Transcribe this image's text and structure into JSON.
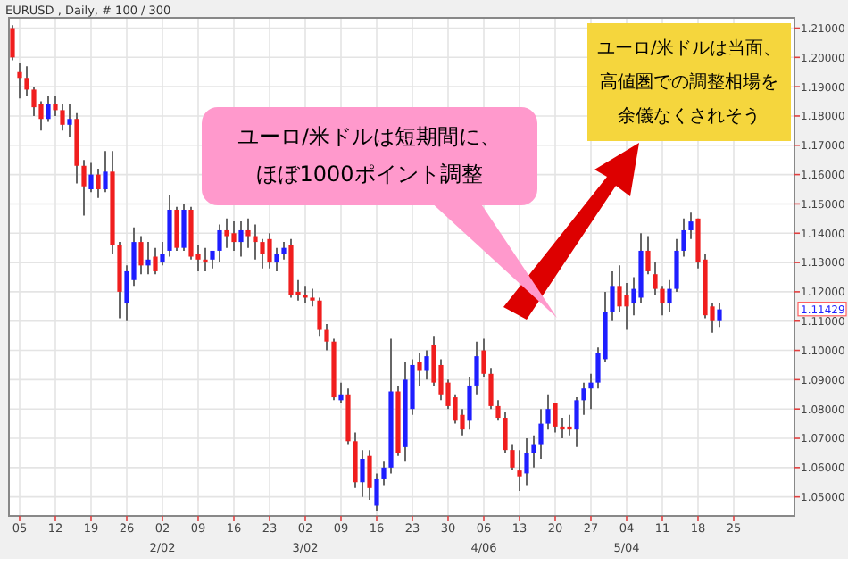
{
  "chart_data": {
    "type": "candlestick",
    "title": "EURUSD , Daily, # 100 / 300",
    "categories": [
      null,
      "05",
      null,
      null,
      null,
      null,
      "12",
      null,
      null,
      null,
      null,
      "19",
      null,
      null,
      null,
      null,
      "26",
      null,
      null,
      null,
      null,
      "02\n2/02",
      null,
      null,
      null,
      null,
      "09",
      null,
      null,
      null,
      null,
      "16",
      null,
      null,
      null,
      null,
      "23",
      null,
      null,
      null,
      null,
      "02\n3/02",
      null,
      null,
      null,
      null,
      "09",
      null,
      null,
      null,
      null,
      "16",
      null,
      null,
      null,
      null,
      "23",
      null,
      null,
      null,
      null,
      "30",
      null,
      null,
      null,
      null,
      "06\n4/06",
      null,
      null,
      null,
      null,
      "13",
      null,
      null,
      null,
      null,
      "20",
      null,
      null,
      null,
      null,
      "27",
      null,
      null,
      null,
      null,
      "04\n5/04",
      null,
      null,
      null,
      null,
      "11",
      null,
      null,
      null,
      null,
      "18",
      null,
      null,
      null,
      null,
      "25",
      null,
      null,
      null,
      null,
      null,
      null,
      null,
      null
    ],
    "ohlc": [
      [
        1.21,
        1.211,
        1.199,
        1.2
      ],
      [
        1.195,
        1.198,
        1.186,
        1.193
      ],
      [
        1.193,
        1.197,
        1.187,
        1.189
      ],
      [
        1.189,
        1.19,
        1.18,
        1.183
      ],
      [
        1.184,
        1.185,
        1.175,
        1.179
      ],
      [
        1.179,
        1.187,
        1.178,
        1.184
      ],
      [
        1.184,
        1.187,
        1.18,
        1.182
      ],
      [
        1.182,
        1.184,
        1.175,
        1.177
      ],
      [
        1.177,
        1.184,
        1.173,
        1.179
      ],
      [
        1.179,
        1.181,
        1.157,
        1.163
      ],
      [
        1.163,
        1.165,
        1.146,
        1.156
      ],
      [
        1.155,
        1.164,
        1.154,
        1.16
      ],
      [
        1.16,
        1.162,
        1.152,
        1.155
      ],
      [
        1.155,
        1.168,
        1.154,
        1.161
      ],
      [
        1.161,
        1.168,
        1.133,
        1.136
      ],
      [
        1.136,
        1.137,
        1.111,
        1.12
      ],
      [
        1.116,
        1.129,
        1.11,
        1.127
      ],
      [
        1.124,
        1.142,
        1.122,
        1.137
      ],
      [
        1.137,
        1.139,
        1.126,
        1.129
      ],
      [
        1.129,
        1.137,
        1.126,
        1.131
      ],
      [
        1.132,
        1.135,
        1.126,
        1.127
      ],
      [
        1.13,
        1.137,
        1.129,
        1.133
      ],
      [
        1.134,
        1.153,
        1.132,
        1.148
      ],
      [
        1.148,
        1.149,
        1.134,
        1.135
      ],
      [
        1.135,
        1.15,
        1.134,
        1.148
      ],
      [
        1.148,
        1.149,
        1.131,
        1.132
      ],
      [
        1.133,
        1.136,
        1.127,
        1.131
      ],
      [
        1.131,
        1.135,
        1.127,
        1.13
      ],
      [
        1.131,
        1.134,
        1.128,
        1.134
      ],
      [
        1.134,
        1.143,
        1.13,
        1.141
      ],
      [
        1.141,
        1.145,
        1.135,
        1.139
      ],
      [
        1.14,
        1.144,
        1.134,
        1.137
      ],
      [
        1.137,
        1.144,
        1.132,
        1.141
      ],
      [
        1.141,
        1.145,
        1.135,
        1.139
      ],
      [
        1.139,
        1.143,
        1.131,
        1.137
      ],
      [
        1.137,
        1.138,
        1.128,
        1.133
      ],
      [
        1.138,
        1.14,
        1.128,
        1.13
      ],
      [
        1.13,
        1.135,
        1.127,
        1.133
      ],
      [
        1.133,
        1.137,
        1.131,
        1.135
      ],
      [
        1.136,
        1.138,
        1.118,
        1.119
      ],
      [
        1.12,
        1.124,
        1.117,
        1.119
      ],
      [
        1.119,
        1.122,
        1.116,
        1.118
      ],
      [
        1.118,
        1.121,
        1.115,
        1.117
      ],
      [
        1.117,
        1.118,
        1.105,
        1.107
      ],
      [
        1.107,
        1.109,
        1.1,
        1.103
      ],
      [
        1.103,
        1.104,
        1.083,
        1.084
      ],
      [
        1.083,
        1.089,
        1.082,
        1.085
      ],
      [
        1.085,
        1.087,
        1.068,
        1.069
      ],
      [
        1.069,
        1.072,
        1.053,
        1.055
      ],
      [
        1.055,
        1.066,
        1.05,
        1.063
      ],
      [
        1.064,
        1.066,
        1.049,
        1.053
      ],
      [
        1.047,
        1.058,
        1.045,
        1.056
      ],
      [
        1.056,
        1.062,
        1.054,
        1.06
      ],
      [
        1.06,
        1.104,
        1.058,
        1.086
      ],
      [
        1.086,
        1.088,
        1.064,
        1.065
      ],
      [
        1.067,
        1.096,
        1.062,
        1.09
      ],
      [
        1.08,
        1.097,
        1.078,
        1.095
      ],
      [
        1.096,
        1.099,
        1.088,
        1.093
      ],
      [
        1.093,
        1.1,
        1.09,
        1.098
      ],
      [
        1.102,
        1.105,
        1.088,
        1.089
      ],
      [
        1.095,
        1.097,
        1.083,
        1.085
      ],
      [
        1.089,
        1.09,
        1.08,
        1.081
      ],
      [
        1.084,
        1.085,
        1.075,
        1.076
      ],
      [
        1.078,
        1.08,
        1.071,
        1.073
      ],
      [
        1.076,
        1.091,
        1.073,
        1.088
      ],
      [
        1.088,
        1.103,
        1.085,
        1.098
      ],
      [
        1.1,
        1.104,
        1.091,
        1.092
      ],
      [
        1.092,
        1.094,
        1.08,
        1.081
      ],
      [
        1.081,
        1.083,
        1.076,
        1.077
      ],
      [
        1.077,
        1.079,
        1.065,
        1.066
      ],
      [
        1.066,
        1.068,
        1.059,
        1.06
      ],
      [
        1.059,
        1.066,
        1.052,
        1.057
      ],
      [
        1.058,
        1.07,
        1.054,
        1.065
      ],
      [
        1.065,
        1.071,
        1.06,
        1.068
      ],
      [
        1.068,
        1.08,
        1.063,
        1.075
      ],
      [
        1.075,
        1.085,
        1.073,
        1.08
      ],
      [
        1.082,
        1.082,
        1.072,
        1.074
      ],
      [
        1.074,
        1.077,
        1.07,
        1.073
      ],
      [
        1.074,
        1.078,
        1.071,
        1.073
      ],
      [
        1.073,
        1.084,
        1.067,
        1.083
      ],
      [
        1.083,
        1.089,
        1.078,
        1.087
      ],
      [
        1.087,
        1.092,
        1.08,
        1.089
      ],
      [
        1.089,
        1.101,
        1.087,
        1.099
      ],
      [
        1.097,
        1.12,
        1.096,
        1.113
      ],
      [
        1.113,
        1.127,
        1.11,
        1.122
      ],
      [
        1.122,
        1.129,
        1.113,
        1.115
      ],
      [
        1.119,
        1.123,
        1.107,
        1.115
      ],
      [
        1.116,
        1.125,
        1.112,
        1.121
      ],
      [
        1.118,
        1.14,
        1.116,
        1.134
      ],
      [
        1.134,
        1.139,
        1.126,
        1.127
      ],
      [
        1.126,
        1.13,
        1.119,
        1.121
      ],
      [
        1.121,
        1.122,
        1.112,
        1.116
      ],
      [
        1.116,
        1.124,
        1.113,
        1.121
      ],
      [
        1.121,
        1.138,
        1.12,
        1.134
      ],
      [
        1.134,
        1.145,
        1.132,
        1.141
      ],
      [
        1.141,
        1.147,
        1.138,
        1.144
      ],
      [
        1.145,
        1.145,
        1.128,
        1.13
      ],
      [
        1.131,
        1.133,
        1.111,
        1.112
      ],
      [
        1.115,
        1.116,
        1.106,
        1.11
      ],
      [
        1.11,
        1.116,
        1.108,
        1.114
      ],
      null,
      null,
      null,
      null,
      null,
      null,
      null,
      null,
      null,
      null
    ],
    "colors": [
      "#f01e1e",
      "#f01e1e",
      "#f01e1e",
      "#f01e1e",
      "#f01e1e",
      "#1e1eff",
      "#f01e1e",
      "#f01e1e",
      "#1e1eff",
      "#f01e1e",
      "#f01e1e",
      "#1e1eff",
      "#f01e1e",
      "#1e1eff",
      "#f01e1e",
      "#f01e1e",
      "#1e1eff",
      "#1e1eff",
      "#f01e1e",
      "#1e1eff",
      "#f01e1e",
      "#1e1eff",
      "#1e1eff",
      "#f01e1e",
      "#1e1eff",
      "#f01e1e",
      "#f01e1e",
      "#f01e1e",
      "#1e1eff",
      "#1e1eff",
      "#f01e1e",
      "#f01e1e",
      "#1e1eff",
      "#f01e1e",
      "#f01e1e",
      "#f01e1e",
      "#f01e1e",
      "#1e1eff",
      "#1e1eff",
      "#f01e1e",
      "#f01e1e",
      "#f01e1e",
      "#f01e1e",
      "#f01e1e",
      "#f01e1e",
      "#f01e1e",
      "#1e1eff",
      "#f01e1e",
      "#f01e1e",
      "#1e1eff",
      "#f01e1e",
      "#1e1eff",
      "#1e1eff",
      "#1e1eff",
      "#f01e1e",
      "#1e1eff",
      "#1e1eff",
      "#f01e1e",
      "#1e1eff",
      "#f01e1e",
      "#f01e1e",
      "#f01e1e",
      "#f01e1e",
      "#f01e1e",
      "#1e1eff",
      "#1e1eff",
      "#f01e1e",
      "#f01e1e",
      "#f01e1e",
      "#f01e1e",
      "#f01e1e",
      "#f01e1e",
      "#1e1eff",
      "#1e1eff",
      "#1e1eff",
      "#1e1eff",
      "#f01e1e",
      "#f01e1e",
      "#f01e1e",
      "#1e1eff",
      "#1e1eff",
      "#1e1eff",
      "#1e1eff",
      "#1e1eff",
      "#1e1eff",
      "#f01e1e",
      "#f01e1e",
      "#1e1eff",
      "#1e1eff",
      "#f01e1e",
      "#f01e1e",
      "#f01e1e",
      "#1e1eff",
      "#1e1eff",
      "#1e1eff",
      "#1e1eff",
      "#f01e1e",
      "#f01e1e",
      "#f01e1e",
      "#1e1eff",
      null,
      null,
      null,
      null,
      null,
      null,
      null,
      null,
      null,
      null
    ],
    "ylim": [
      1.0435,
      1.2135
    ],
    "yticks": [
      {
        "value": 1.05,
        "label": "1.05000"
      },
      {
        "value": 1.06,
        "label": "1.06000"
      },
      {
        "value": 1.07,
        "label": "1.07000"
      },
      {
        "value": 1.08,
        "label": "1.08000"
      },
      {
        "value": 1.09,
        "label": "1.09000"
      },
      {
        "value": 1.1,
        "label": "1.10000"
      },
      {
        "value": 1.11,
        "label": "1.11000"
      },
      {
        "value": 1.12,
        "label": "1.12000"
      },
      {
        "value": 1.13,
        "label": "1.13000"
      },
      {
        "value": 1.14,
        "label": "1.14000"
      },
      {
        "value": 1.15,
        "label": "1.15000"
      },
      {
        "value": 1.16,
        "label": "1.16000"
      },
      {
        "value": 1.17,
        "label": "1.17000"
      },
      {
        "value": 1.18,
        "label": "1.18000"
      },
      {
        "value": 1.19,
        "label": "1.19000"
      },
      {
        "value": 1.2,
        "label": "1.20000"
      },
      {
        "value": 1.21,
        "label": "1.21000"
      }
    ],
    "annotations": [
      "ユーロ/米ドルは短期間に、ほぼ1000ポイント調整",
      "ユーロ/米ドルは当面、高値圏での調整相場を余儀なくされそう",
      "1.11429"
    ],
    "grid": true
  }
}
